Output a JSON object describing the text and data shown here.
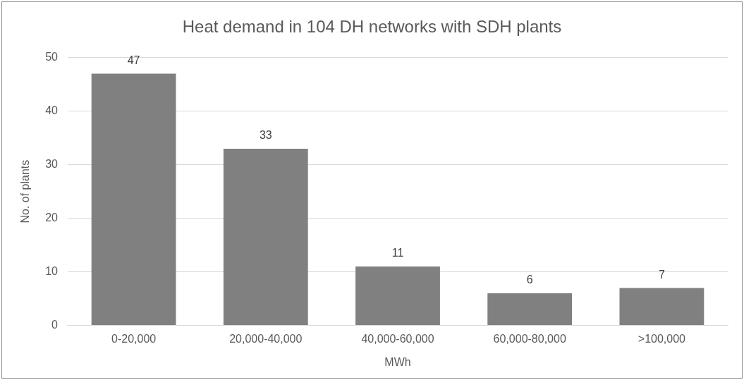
{
  "chart_data": {
    "type": "bar",
    "title": "Heat demand in 104 DH networks with SDH plants",
    "xlabel": "MWh",
    "ylabel": "No. of plants",
    "categories": [
      "0-20,000",
      "20,000-40,000",
      "40,000-60,000",
      "60,000-80,000",
      ">100,000"
    ],
    "values": [
      47,
      33,
      11,
      6,
      7
    ],
    "color": "#808080",
    "ylim": [
      0,
      50
    ],
    "yticks": [
      0,
      10,
      20,
      30,
      40,
      50
    ],
    "grid": "y",
    "data_labels": true,
    "legend": false
  }
}
